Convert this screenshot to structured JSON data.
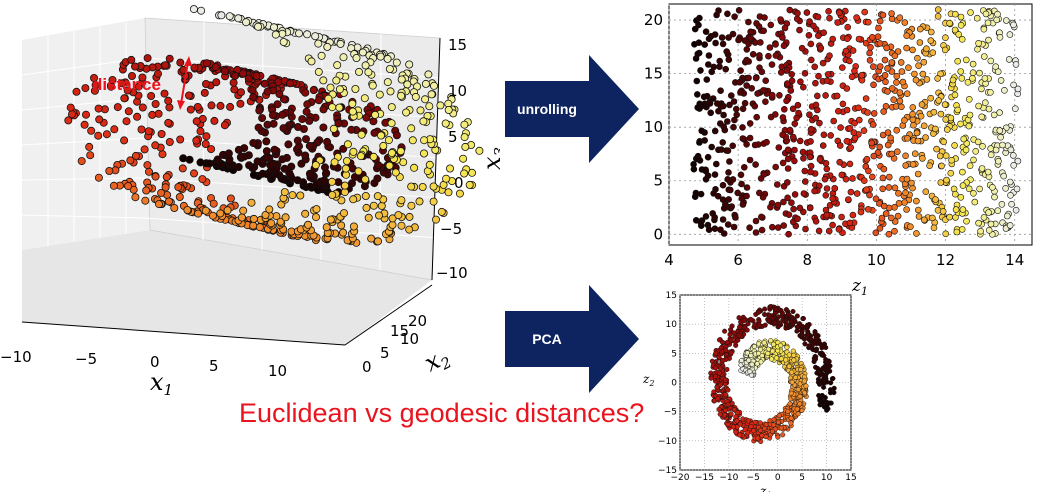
{
  "swiss_roll": {
    "distance_label": "distance",
    "x1_label": "x",
    "x1_sub": "1",
    "x2_label": "x",
    "x2_sub": "2",
    "x3_label": "x",
    "x3_sub": "3",
    "x1_ticks": [
      "−10",
      "−5",
      "0",
      "5",
      "10"
    ],
    "x2_ticks": [
      "0",
      "5",
      "10",
      "15",
      "20"
    ],
    "x3_ticks": [
      "15",
      "10",
      "5",
      "0",
      "−5",
      "−10"
    ]
  },
  "arrows": {
    "unrolling_label": "unrolling",
    "pca_label": "PCA",
    "fill_color": "#0d2461"
  },
  "question_text": "Euclidean vs geodesic distances?",
  "chart_data": [
    {
      "type": "scatter",
      "id": "unrolled",
      "title": "",
      "xlabel": "z",
      "xlabel_sub": "1",
      "ylabel": "",
      "xlim": [
        4,
        14.5
      ],
      "ylim": [
        -1,
        21.5
      ],
      "x_ticks": [
        4,
        6,
        8,
        10,
        12,
        14
      ],
      "y_ticks": [
        0,
        5,
        10,
        15,
        20
      ],
      "grid": true,
      "colormap": "hot",
      "x_range": [
        4.7,
        14.1
      ],
      "y_range": [
        0,
        21
      ]
    },
    {
      "type": "scatter",
      "id": "pca",
      "title": "",
      "xlabel": "z",
      "xlabel_sub": "1",
      "ylabel": "z",
      "ylabel_sub": "2",
      "xlim": [
        -20,
        15
      ],
      "ylim": [
        -15,
        15
      ],
      "x_ticks": [
        -20,
        -15,
        -10,
        -5,
        0,
        5,
        10,
        15
      ],
      "y_ticks": [
        -15,
        -10,
        -5,
        0,
        5,
        10,
        15
      ],
      "x_tick_labels": [
        "−20",
        "−15",
        "−10",
        "−5",
        "0",
        "5",
        "10",
        "15"
      ],
      "y_tick_labels": [
        "−15",
        "−10",
        "−5",
        "0",
        "5",
        "10",
        "15"
      ],
      "grid": true,
      "colormap": "hot",
      "shape": "spiral"
    }
  ]
}
